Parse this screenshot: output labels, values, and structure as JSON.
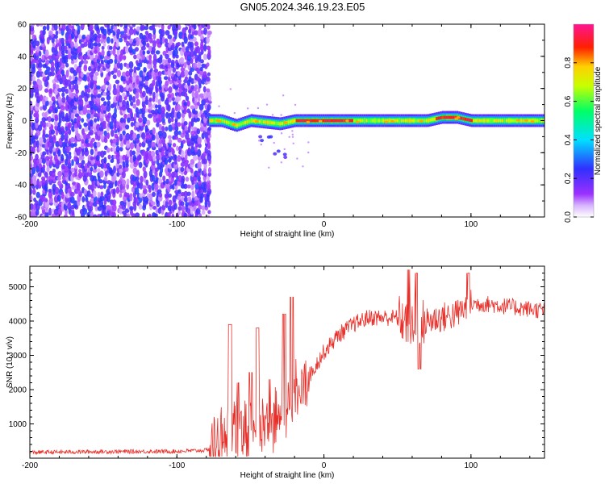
{
  "figure": {
    "title": "GN05.2024.346.19.23.E05"
  },
  "chart_data": [
    {
      "type": "heatmap",
      "xlabel": "Height of straight line (km)",
      "ylabel": "Frequency (Hz)",
      "xlim": [
        -200,
        150
      ],
      "ylim": [
        -60,
        60
      ],
      "xticks": [
        -200,
        -100,
        0,
        100
      ],
      "yticks": [
        -60,
        -40,
        -20,
        0,
        20,
        40,
        60
      ],
      "grid": false,
      "colorbar": {
        "label": "Normalized spectral amplitude",
        "range": [
          0,
          1
        ],
        "ticks": [
          0,
          0.2,
          0.4,
          0.6,
          0.8
        ],
        "tick_labels": [
          "0.0",
          "0.2",
          "0.4",
          "0.6",
          "0.8"
        ],
        "colors": [
          "#ffffff",
          "#9b30ff",
          "#3030ff",
          "#00e0ff",
          "#00ff66",
          "#c8ff00",
          "#ffd000",
          "#ff2000",
          "#ff1493"
        ]
      },
      "noise_region": {
        "x": [
          -200,
          -78
        ],
        "y": [
          -60,
          60
        ],
        "amplitude": [
          0.05,
          0.25
        ]
      },
      "signal_band": {
        "x": [
          -78,
          150
        ],
        "half_width_hz": 2.5,
        "trace": [
          {
            "x": -78,
            "y": 0
          },
          {
            "x": -70,
            "y": 0
          },
          {
            "x": -60,
            "y": -3
          },
          {
            "x": -50,
            "y": 0
          },
          {
            "x": -40,
            "y": -1
          },
          {
            "x": -30,
            "y": -2
          },
          {
            "x": -20,
            "y": 0
          },
          {
            "x": 0,
            "y": 0
          },
          {
            "x": 20,
            "y": 0
          },
          {
            "x": 50,
            "y": 0
          },
          {
            "x": 70,
            "y": 0
          },
          {
            "x": 80,
            "y": 2
          },
          {
            "x": 90,
            "y": 2
          },
          {
            "x": 100,
            "y": 0
          },
          {
            "x": 150,
            "y": 0
          }
        ],
        "hot_segments": [
          [
            -20,
            20
          ],
          [
            75,
            100
          ]
        ],
        "tail": [
          {
            "x": -60,
            "y": -5
          },
          {
            "x": -40,
            "y": -12
          },
          {
            "x": -30,
            "y": -20
          }
        ]
      }
    },
    {
      "type": "line",
      "xlabel": "Height of straight line (km)",
      "ylabel": "SNR (10 * v/v)",
      "xlim": [
        -200,
        150
      ],
      "ylim": [
        0,
        5600
      ],
      "xticks": [
        -200,
        -100,
        0,
        100
      ],
      "yticks": [
        1000,
        2000,
        3000,
        4000,
        5000
      ],
      "grid": false,
      "series": [
        {
          "color": "#e8302a",
          "baseline": [
            {
              "x": -200,
              "y": 170
            },
            {
              "x": -150,
              "y": 190
            },
            {
              "x": -100,
              "y": 200
            },
            {
              "x": -80,
              "y": 230
            },
            {
              "x": -75,
              "y": 400
            },
            {
              "x": -70,
              "y": 600
            },
            {
              "x": -60,
              "y": 800
            },
            {
              "x": -50,
              "y": 900
            },
            {
              "x": -40,
              "y": 1050
            },
            {
              "x": -30,
              "y": 1300
            },
            {
              "x": -20,
              "y": 1700
            },
            {
              "x": -10,
              "y": 2400
            },
            {
              "x": 0,
              "y": 3100
            },
            {
              "x": 10,
              "y": 3600
            },
            {
              "x": 20,
              "y": 3900
            },
            {
              "x": 30,
              "y": 4100
            },
            {
              "x": 50,
              "y": 4100
            },
            {
              "x": 55,
              "y": 4000
            },
            {
              "x": 60,
              "y": 3900
            },
            {
              "x": 70,
              "y": 4000
            },
            {
              "x": 80,
              "y": 4100
            },
            {
              "x": 90,
              "y": 4200
            },
            {
              "x": 100,
              "y": 4500
            },
            {
              "x": 110,
              "y": 4500
            },
            {
              "x": 150,
              "y": 4300
            }
          ],
          "spikes": [
            {
              "x": -64,
              "y": 3900
            },
            {
              "x": -58,
              "y": 2200
            },
            {
              "x": -50,
              "y": 2500
            },
            {
              "x": -45,
              "y": 3800
            },
            {
              "x": -37,
              "y": 2300
            },
            {
              "x": -27,
              "y": 4200
            },
            {
              "x": -22,
              "y": 4700
            },
            {
              "x": 58,
              "y": 5500
            },
            {
              "x": 63,
              "y": 5400
            },
            {
              "x": 65,
              "y": 2600
            },
            {
              "x": 98,
              "y": 5400
            }
          ]
        }
      ]
    }
  ]
}
